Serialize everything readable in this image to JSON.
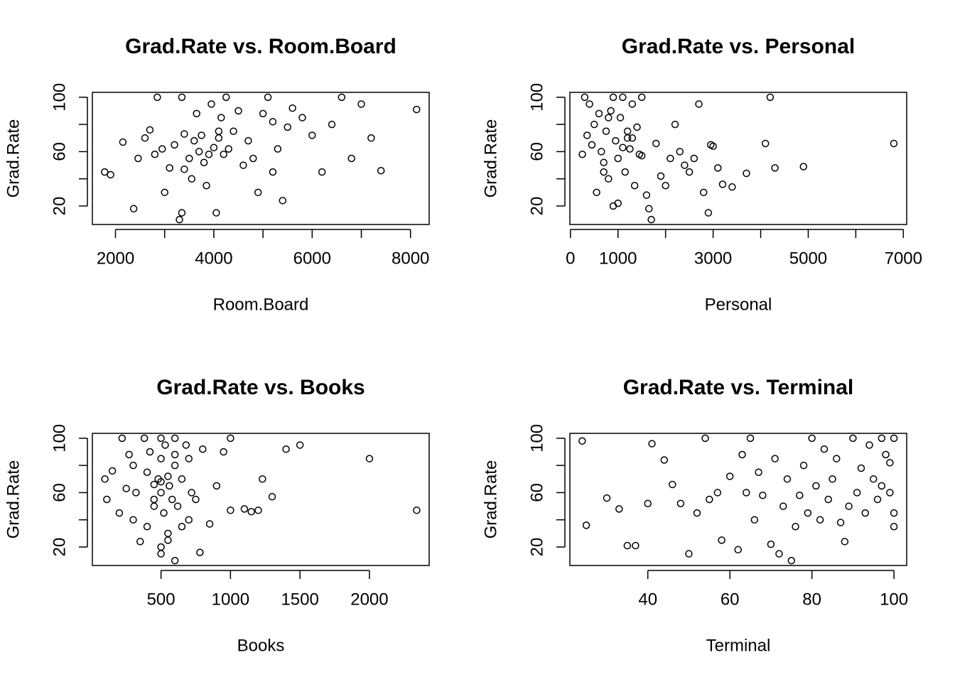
{
  "chart_data": [
    {
      "type": "scatter",
      "title": "Grad.Rate vs. Room.Board",
      "x_label": "Room.Board",
      "y_label": "Grad.Rate",
      "x": [
        1780,
        1900,
        2150,
        2370,
        2460,
        2600,
        2700,
        2850,
        2950,
        3000,
        3100,
        3200,
        3300,
        3350,
        3400,
        3500,
        3550,
        3600,
        3650,
        3700,
        3750,
        3800,
        3850,
        3900,
        3950,
        4000,
        4050,
        4100,
        4150,
        4200,
        4250,
        4300,
        4400,
        4500,
        4600,
        4700,
        4800,
        4900,
        5000,
        5100,
        5200,
        5300,
        5400,
        5500,
        5600,
        5800,
        6000,
        6200,
        6400,
        6600,
        6800,
        7000,
        7200,
        7400,
        8124,
        3350,
        3400,
        4100,
        2800,
        5200
      ],
      "values": [
        45,
        43,
        67,
        18,
        55,
        70,
        76,
        100,
        62,
        30,
        48,
        65,
        10,
        15,
        73,
        55,
        40,
        68,
        88,
        60,
        72,
        52,
        35,
        58,
        95,
        63,
        15,
        70,
        85,
        58,
        100,
        62,
        75,
        90,
        50,
        68,
        55,
        30,
        88,
        100,
        45,
        62,
        24,
        78,
        92,
        85,
        72,
        45,
        80,
        100,
        55,
        95,
        70,
        46,
        91,
        100,
        47,
        75,
        58,
        82
      ],
      "color": "#000000",
      "xlim": [
        1530,
        8380
      ],
      "ylim": [
        6.4,
        103.6
      ],
      "xticks": [
        2000,
        {
          "value": 3000,
          "label": null
        },
        4000,
        {
          "value": 5000,
          "label": null
        },
        6000,
        {
          "value": 7000,
          "label": null
        },
        8000
      ],
      "yticks": [
        20,
        {
          "value": 40,
          "label": null
        },
        60,
        {
          "value": 80,
          "label": null
        },
        100
      ]
    },
    {
      "type": "scatter",
      "title": "Grad.Rate vs. Personal",
      "x_label": "Personal",
      "y_label": "Grad.Rate",
      "x": [
        250,
        300,
        350,
        400,
        450,
        500,
        550,
        600,
        650,
        700,
        750,
        800,
        850,
        900,
        950,
        1000,
        1050,
        1100,
        1150,
        1200,
        1250,
        1300,
        1350,
        1400,
        1450,
        1500,
        1600,
        1700,
        1800,
        1900,
        2000,
        2100,
        2200,
        2300,
        2400,
        2500,
        2600,
        2700,
        2800,
        2900,
        3000,
        3100,
        3200,
        3400,
        3700,
        4100,
        4200,
        4300,
        4900,
        6800,
        900,
        1000,
        1100,
        1200,
        800,
        700,
        1300,
        1500,
        1650,
        2950
      ],
      "values": [
        58,
        100,
        72,
        95,
        65,
        80,
        30,
        88,
        60,
        52,
        75,
        40,
        90,
        100,
        68,
        55,
        85,
        100,
        45,
        70,
        62,
        95,
        35,
        78,
        58,
        100,
        28,
        10,
        66,
        42,
        35,
        55,
        80,
        60,
        50,
        45,
        55,
        95,
        30,
        15,
        64,
        48,
        36,
        34,
        44,
        66,
        100,
        48,
        49,
        66,
        20,
        22,
        63,
        75,
        85,
        45,
        70,
        57,
        18,
        65
      ],
      "color": "#000000",
      "xlim": [
        -12,
        7070
      ],
      "ylim": [
        6.4,
        103.6
      ],
      "xticks": [
        0,
        1000,
        {
          "value": 2000,
          "label": null
        },
        3000,
        {
          "value": 4000,
          "label": null
        },
        5000,
        {
          "value": 6000,
          "label": null
        },
        7000
      ],
      "yticks": [
        20,
        {
          "value": 40,
          "label": null
        },
        60,
        {
          "value": 80,
          "label": null
        },
        100
      ]
    },
    {
      "type": "scatter",
      "title": "Grad.Rate vs. Books",
      "x_label": "Books",
      "y_label": "Grad.Rate",
      "x": [
        96,
        110,
        150,
        200,
        220,
        250,
        270,
        300,
        300,
        320,
        350,
        380,
        400,
        400,
        420,
        450,
        450,
        480,
        500,
        500,
        500,
        500,
        520,
        530,
        550,
        550,
        560,
        580,
        600,
        600,
        600,
        620,
        650,
        650,
        680,
        700,
        700,
        720,
        750,
        780,
        800,
        850,
        900,
        950,
        1000,
        1000,
        1100,
        1150,
        1200,
        1230,
        1300,
        1400,
        1500,
        2000,
        2340,
        500,
        550,
        450,
        600,
        500
      ],
      "values": [
        70,
        55,
        76,
        45,
        100,
        63,
        88,
        40,
        80,
        60,
        24,
        100,
        35,
        75,
        90,
        50,
        66,
        70,
        15,
        85,
        100,
        60,
        45,
        95,
        25,
        72,
        65,
        55,
        10,
        80,
        100,
        50,
        70,
        35,
        95,
        40,
        85,
        60,
        55,
        16,
        92,
        37,
        65,
        90,
        47,
        100,
        48,
        46,
        47,
        70,
        57,
        92,
        95,
        85,
        47,
        20,
        30,
        55,
        88,
        68
      ],
      "color": "#000000",
      "xlim": [
        6,
        2430
      ],
      "ylim": [
        6.4,
        103.6
      ],
      "xticks": [
        500,
        1000,
        1500,
        2000
      ],
      "yticks": [
        20,
        {
          "value": 40,
          "label": null
        },
        60,
        {
          "value": 80,
          "label": null
        },
        100
      ]
    },
    {
      "type": "scatter",
      "title": "Grad.Rate vs. Terminal",
      "x_label": "Terminal",
      "y_label": "Grad.Rate",
      "x": [
        24,
        25,
        30,
        33,
        35,
        37,
        40,
        41,
        44,
        46,
        48,
        50,
        52,
        54,
        55,
        57,
        58,
        60,
        62,
        63,
        64,
        65,
        66,
        67,
        68,
        70,
        71,
        72,
        73,
        74,
        75,
        76,
        77,
        78,
        79,
        80,
        81,
        82,
        83,
        84,
        85,
        86,
        87,
        88,
        89,
        90,
        91,
        92,
        93,
        94,
        95,
        96,
        97,
        98,
        99,
        100,
        100,
        99,
        97,
        100
      ],
      "values": [
        98,
        36,
        56,
        48,
        21,
        21,
        52,
        96,
        84,
        66,
        52,
        15,
        45,
        100,
        55,
        60,
        25,
        72,
        18,
        88,
        60,
        100,
        40,
        75,
        58,
        22,
        85,
        15,
        50,
        70,
        10,
        35,
        58,
        80,
        45,
        100,
        65,
        40,
        92,
        55,
        70,
        85,
        38,
        24,
        50,
        100,
        60,
        78,
        45,
        95,
        70,
        55,
        100,
        88,
        60,
        35,
        45,
        82,
        65,
        100
      ],
      "color": "#000000",
      "xlim": [
        21,
        103.1
      ],
      "ylim": [
        6.4,
        103.6
      ],
      "xticks": [
        40,
        60,
        80,
        100
      ],
      "yticks": [
        20,
        {
          "value": 40,
          "label": null
        },
        60,
        {
          "value": 80,
          "label": null
        },
        100
      ]
    }
  ]
}
